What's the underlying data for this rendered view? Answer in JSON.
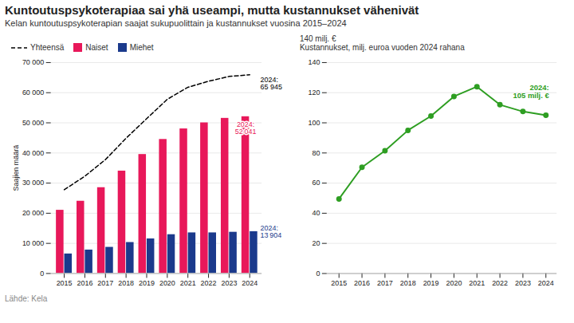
{
  "title": "Kuntoutuspsykoterapiaa sai yhä useampi, mutta kustannukset vähenivät",
  "subtitle": "Kelan kuntoutuspsykoterapian saajat sukupuolittain ja kustannukset vuosina 2015–2024",
  "source": "Lähde: Kela",
  "chart_data": [
    {
      "type": "bar",
      "categories": [
        "2015",
        "2016",
        "2017",
        "2018",
        "2019",
        "2020",
        "2021",
        "2022",
        "2023",
        "2024"
      ],
      "series": [
        {
          "name": "Yhteensä",
          "type": "line",
          "line_style": "dashed",
          "color": "#000000",
          "values": [
            27800,
            32300,
            37800,
            44900,
            51400,
            57800,
            61800,
            63800,
            65400,
            65945
          ]
        },
        {
          "name": "Naiset",
          "type": "bar",
          "color": "#E8185A",
          "values": [
            21000,
            24000,
            28500,
            34000,
            39500,
            44500,
            48000,
            50000,
            51500,
            52041
          ]
        },
        {
          "name": "Miehet",
          "type": "bar",
          "color": "#1B3A8C",
          "values": [
            6500,
            7800,
            8700,
            10300,
            11500,
            12900,
            13500,
            13500,
            13700,
            13904
          ]
        }
      ],
      "ylabel": "Saajien määrä",
      "ylim": [
        0,
        70000
      ],
      "yticks": [
        0,
        {
          "value": 10000,
          "label": "10 000"
        },
        {
          "value": 20000,
          "label": "20 000"
        },
        {
          "value": 30000,
          "label": "30 000"
        },
        {
          "value": 40000,
          "label": "40 000"
        },
        {
          "value": 50000,
          "label": "50 000"
        },
        {
          "value": 60000,
          "label": "60 000"
        },
        {
          "value": 70000,
          "label": "70 000"
        }
      ],
      "grid": true,
      "legend": "upper left",
      "annotations": [
        {
          "text": "2024:\n65 945",
          "x": "2024",
          "series": "Yhteensä"
        },
        {
          "text": "2024:\n52 041",
          "x": "2024",
          "series": "Naiset"
        },
        {
          "text": "2024:\n13 904",
          "x": "2024",
          "series": "Miehet"
        }
      ]
    },
    {
      "type": "line",
      "categories": [
        "2015",
        "2016",
        "2017",
        "2018",
        "2019",
        "2020",
        "2021",
        "2022",
        "2023",
        "2024"
      ],
      "values": [
        49.5,
        70.5,
        81.5,
        95.0,
        104.5,
        117.5,
        124.0,
        112.0,
        107.5,
        105.0
      ],
      "color": "#2E9E22",
      "marker": "circle",
      "ylabel": "Kustannukset, milj. euroa vuoden 2024 rahana",
      "ylim": [
        0,
        140
      ],
      "yticks": [
        0,
        20,
        40,
        60,
        80,
        100,
        120,
        140
      ],
      "grid": true,
      "annotations": [
        {
          "text": "140 milj. €"
        },
        {
          "text": "2024:\n105 milj. €",
          "x": "2024"
        }
      ]
    }
  ]
}
